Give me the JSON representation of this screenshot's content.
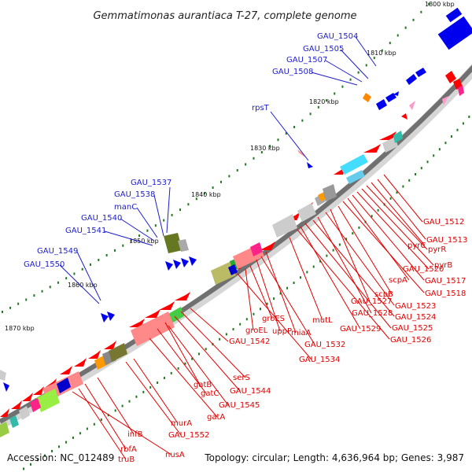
{
  "title": "Gemmatimonas aurantiaca T-27, complete genome",
  "footer": {
    "accession": "Accession: NC_012489",
    "summary": "Topology: circular; Length: 4,636,964 bp; Genes: 3,987"
  },
  "ticks": [
    "1800 kbp",
    "1810 kbp",
    "1820 kbp",
    "1830 kbp",
    "1840 kbp",
    "1850 kbp",
    "1860 kbp",
    "1870 kbp"
  ],
  "labels": {
    "blue": [
      "GAU_1504",
      "GAU_1505",
      "GAU_1507",
      "GAU_1508",
      "rpsT",
      "GAU_1537",
      "GAU_1538",
      "manC",
      "GAU_1540",
      "GAU_1541",
      "GAU_1549",
      "GAU_1550"
    ],
    "red": [
      "GAU_1512",
      "GAU_1513",
      "pyrC",
      "pyrR",
      "pyrB",
      "GAU_1520",
      "GAU_1517",
      "scpA",
      "GAU_1518",
      "scpB",
      "GAU_1527",
      "GAU_1523",
      "GAU_1528",
      "GAU_1524",
      "mutL",
      "GAU_1525",
      "GAU_1529",
      "GAU_1526",
      "miaA",
      "GAU_1532",
      "uppP",
      "groES",
      "groEL",
      "GAU_1534",
      "GAU_1542",
      "serS",
      "GAU_1544",
      "gatB",
      "GAU_1545",
      "gatC",
      "gatA",
      "murA",
      "GAU_1552",
      "infB",
      "rbfA",
      "truB",
      "nusA"
    ]
  },
  "colors": {
    "gene_forward": "#ff0000",
    "gene_reverse": "#0000ff",
    "label_forward": "#e00000",
    "label_reverse": "#1c1ccf",
    "backbone": "#777777",
    "tick": "#227722"
  }
}
